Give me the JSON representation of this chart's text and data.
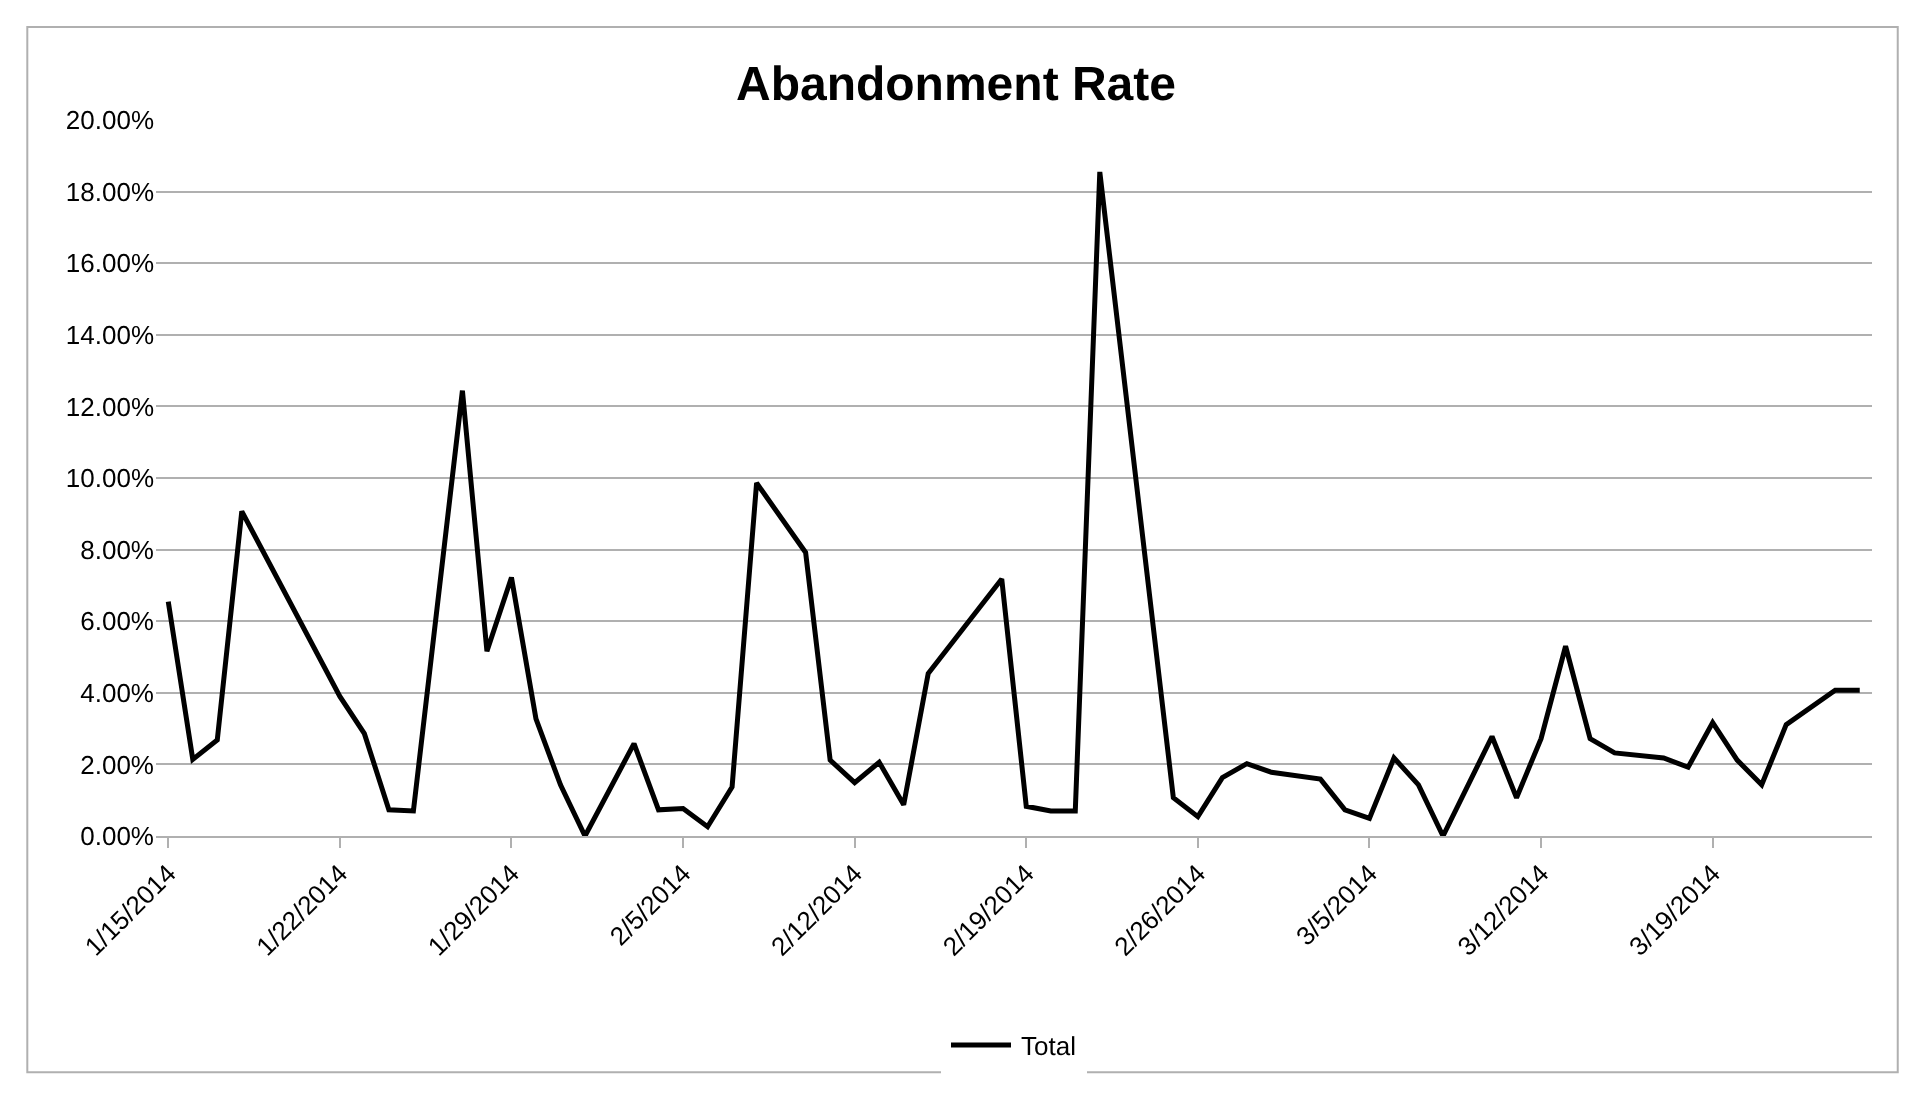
{
  "chart_data": {
    "type": "line",
    "title": "Abandonment Rate",
    "x": [
      "2014-01-15",
      "2014-01-16",
      "2014-01-17",
      "2014-01-18",
      "2014-01-22",
      "2014-01-23",
      "2014-01-24",
      "2014-01-25",
      "2014-01-27",
      "2014-01-28",
      "2014-01-29",
      "2014-01-30",
      "2014-01-31",
      "2014-02-01",
      "2014-02-03",
      "2014-02-04",
      "2014-02-05",
      "2014-02-06",
      "2014-02-07",
      "2014-02-08",
      "2014-02-10",
      "2014-02-11",
      "2014-02-12",
      "2014-02-13",
      "2014-02-14",
      "2014-02-15",
      "2014-02-18",
      "2014-02-19",
      "2014-02-20",
      "2014-02-21",
      "2014-02-22",
      "2014-02-25",
      "2014-02-26",
      "2014-02-27",
      "2014-02-28",
      "2014-03-01",
      "2014-03-03",
      "2014-03-04",
      "2014-03-05",
      "2014-03-06",
      "2014-03-07",
      "2014-03-08",
      "2014-03-10",
      "2014-03-11",
      "2014-03-12",
      "2014-03-13",
      "2014-03-14",
      "2014-03-15",
      "2014-03-17",
      "2014-03-18",
      "2014-03-19",
      "2014-03-20",
      "2014-03-21",
      "2014-03-22",
      "2014-03-24",
      "2014-03-25"
    ],
    "series": [
      {
        "name": "Total",
        "color": "#000000",
        "values": [
          6.55,
          2.14,
          2.68,
          9.07,
          3.9,
          2.86,
          0.73,
          0.7,
          12.44,
          5.16,
          7.22,
          3.27,
          1.43,
          0.0,
          2.58,
          0.73,
          0.77,
          0.26,
          1.37,
          9.86,
          7.92,
          2.12,
          1.49,
          2.06,
          0.87,
          4.54,
          7.18,
          0.83,
          0.7,
          0.7,
          18.55,
          1.07,
          0.54,
          1.63,
          2.02,
          1.78,
          1.59,
          0.73,
          0.49,
          2.18,
          1.43,
          0.0,
          2.78,
          1.07,
          2.72,
          5.3,
          2.72,
          2.32,
          2.18,
          1.92,
          3.17,
          2.12,
          1.43,
          3.11,
          4.07,
          4.07
        ]
      }
    ],
    "xlim": [
      "2014-01-14T12:00",
      "2014-03-25T12:00"
    ],
    "xticks": [
      {
        "value": "2014-01-15",
        "label": "1/15/2014"
      },
      {
        "value": "2014-01-22",
        "label": "1/22/2014"
      },
      {
        "value": "2014-01-29",
        "label": "1/29/2014"
      },
      {
        "value": "2014-02-05",
        "label": "2/5/2014"
      },
      {
        "value": "2014-02-12",
        "label": "2/12/2014"
      },
      {
        "value": "2014-02-19",
        "label": "2/19/2014"
      },
      {
        "value": "2014-02-26",
        "label": "2/26/2014"
      },
      {
        "value": "2014-03-05",
        "label": "3/5/2014"
      },
      {
        "value": "2014-03-12",
        "label": "3/12/2014"
      },
      {
        "value": "2014-03-19",
        "label": "3/19/2014"
      }
    ],
    "ylim": [
      0,
      20
    ],
    "yticks": [
      {
        "value": 0,
        "label": "0.00%"
      },
      {
        "value": 2,
        "label": "2.00%"
      },
      {
        "value": 4,
        "label": "4.00%"
      },
      {
        "value": 6,
        "label": "6.00%"
      },
      {
        "value": 8,
        "label": "8.00%"
      },
      {
        "value": 10,
        "label": "10.00%"
      },
      {
        "value": 12,
        "label": "12.00%"
      },
      {
        "value": 14,
        "label": "14.00%"
      },
      {
        "value": 16,
        "label": "16.00%"
      },
      {
        "value": 18,
        "label": "18.00%"
      },
      {
        "value": 20,
        "label": "20.00%"
      }
    ],
    "grid": "y",
    "legend": "bottom",
    "marker": "none",
    "line_style": "solid"
  }
}
